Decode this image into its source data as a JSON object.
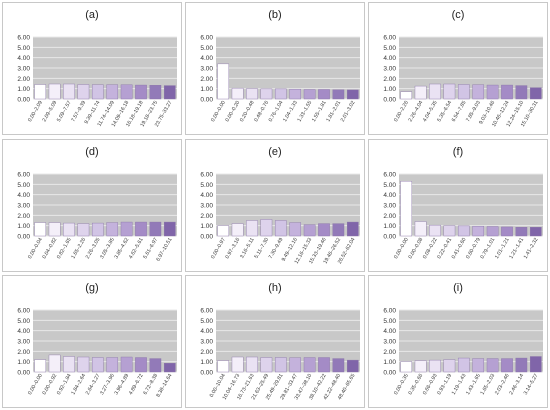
{
  "colors": {
    "plot_bg": "#c8c8c8",
    "grid": "#e9e9e9",
    "axis_text": "#333333",
    "bar_stroke": "#8a74a8",
    "bar_fills": [
      "#ffffff",
      "#f4eff9",
      "#eae2f3",
      "#ded3ec",
      "#d1c4e5",
      "#c4b2dc",
      "#b5a0d2",
      "#a48bc6",
      "#927ab8",
      "#8065a9",
      "#6f4f9c"
    ]
  },
  "chart_data": [
    {
      "label": "(a)",
      "type": "bar",
      "ylim": [
        0,
        6
      ],
      "yticks": [
        "0.00",
        "1.00",
        "2.00",
        "3.00",
        "4.00",
        "5.00",
        "6.00"
      ],
      "grid": true,
      "categories": [
        "0.00–2.09",
        "2.09–5.09",
        "5.09–7.57",
        "7.57–9.39",
        "9.39–11.74",
        "11.74–14.09",
        "14.09–16.18",
        "16.18–19.18",
        "19.18–23.75",
        "23.75–33.27"
      ],
      "values": [
        1.4,
        1.45,
        1.45,
        1.4,
        1.38,
        1.38,
        1.38,
        1.35,
        1.33,
        1.3
      ]
    },
    {
      "label": "(b)",
      "type": "bar",
      "ylim": [
        0,
        6
      ],
      "yticks": [
        "0.00",
        "1.00",
        "2.00",
        "3.00",
        "4.00",
        "5.00",
        "6.00"
      ],
      "grid": true,
      "categories": [
        "0.00–0.00",
        "0.00–0.20",
        "0.20–0.48",
        "0.48–0.76",
        "0.76–1.04",
        "1.04–1.33",
        "1.33–1.55",
        "1.55–1.81",
        "1.81–2.01",
        "2.01–3.02"
      ],
      "values": [
        3.4,
        1.05,
        1.0,
        0.98,
        0.98,
        0.95,
        0.92,
        0.92,
        0.9,
        0.88
      ]
    },
    {
      "label": "(c)",
      "type": "bar",
      "ylim": [
        0,
        6
      ],
      "yticks": [
        "0.00",
        "1.00",
        "2.00",
        "3.00",
        "4.00",
        "5.00",
        "6.00"
      ],
      "grid": true,
      "categories": [
        "0.00–2.26",
        "2.26–4.04",
        "4.04–5.35",
        "5.35–6.54",
        "6.54–7.85",
        "7.85–9.03",
        "9.03–10.46",
        "10.46–12.24",
        "12.24–15.10",
        "15.10–30.31"
      ],
      "values": [
        0.7,
        1.25,
        1.45,
        1.45,
        1.4,
        1.38,
        1.35,
        1.35,
        1.3,
        1.1
      ]
    },
    {
      "label": "(d)",
      "type": "bar",
      "ylim": [
        0,
        6
      ],
      "yticks": [
        "0.00",
        "1.00",
        "2.00",
        "3.00",
        "4.00",
        "5.00",
        "6.00"
      ],
      "grid": true,
      "categories": [
        "0.00–0.04",
        "0.04–0.82",
        "0.82–1.65",
        "1.65–2.26",
        "2.26–3.05",
        "3.05–3.85",
        "3.85–4.62",
        "4.62–5.61",
        "5.61–6.97",
        "6.97–10.51"
      ],
      "values": [
        1.3,
        1.3,
        1.25,
        1.2,
        1.25,
        1.3,
        1.35,
        1.35,
        1.35,
        1.35
      ]
    },
    {
      "label": "(e)",
      "type": "bar",
      "ylim": [
        0,
        6
      ],
      "yticks": [
        "0.00",
        "1.00",
        "2.00",
        "3.00",
        "4.00",
        "5.00",
        "6.00"
      ],
      "grid": true,
      "categories": [
        "0.00–0.97",
        "0.97–3.16",
        "3.16–5.11",
        "5.11–7.30",
        "7.30–9.49",
        "9.49–12.16",
        "12.16–15.33",
        "15.33–19.46",
        "19.46–26.52",
        "26.52–62.04"
      ],
      "values": [
        1.0,
        1.2,
        1.5,
        1.6,
        1.5,
        1.3,
        1.1,
        1.2,
        1.2,
        1.35
      ]
    },
    {
      "label": "(f)",
      "type": "bar",
      "ylim": [
        0,
        6
      ],
      "yticks": [
        "0.00",
        "1.00",
        "2.00",
        "3.00",
        "4.00",
        "5.00",
        "6.00"
      ],
      "grid": true,
      "categories": [
        "0.00–0.00",
        "0.00–0.08",
        "0.08–0.22",
        "0.22–0.41",
        "0.41–0.60",
        "0.60–0.79",
        "0.79–1.01",
        "1.01–1.21",
        "1.21–1.41",
        "1.41–2.32"
      ],
      "values": [
        5.3,
        1.4,
        1.05,
        1.0,
        0.98,
        0.95,
        0.92,
        0.88,
        0.85,
        0.85
      ]
    },
    {
      "label": "(g)",
      "type": "bar",
      "ylim": [
        0,
        6
      ],
      "yticks": [
        "0.00",
        "1.00",
        "2.00",
        "3.00",
        "4.00",
        "5.00",
        "6.00"
      ],
      "grid": true,
      "categories": [
        "0.00–0.00",
        "0.00–0.92",
        "0.92–1.84",
        "1.84–2.64",
        "2.64–3.27",
        "3.27–3.96",
        "3.96–4.89",
        "4.89–6.72",
        "6.72–8.38",
        "8.38–14.64"
      ],
      "values": [
        1.2,
        1.65,
        1.5,
        1.45,
        1.4,
        1.4,
        1.45,
        1.4,
        1.3,
        0.85
      ]
    },
    {
      "label": "(h)",
      "type": "bar",
      "ylim": [
        0,
        6
      ],
      "yticks": [
        "0.00",
        "1.00",
        "2.00",
        "3.00",
        "4.00",
        "5.00",
        "6.00"
      ],
      "grid": true,
      "categories": [
        "0.00–10.04",
        "10.04–16.73",
        "16.73–21.63",
        "21.63–25.49",
        "25.49–29.81",
        "29.81–33.47",
        "33.47–38.10",
        "38.10–42.22",
        "42.22–48.40",
        "48.40–65.65"
      ],
      "values": [
        1.1,
        1.45,
        1.45,
        1.4,
        1.4,
        1.38,
        1.4,
        1.4,
        1.3,
        1.15
      ]
    },
    {
      "label": "(i)",
      "type": "bar",
      "ylim": [
        0,
        6
      ],
      "yticks": [
        "0.00",
        "1.00",
        "2.00",
        "3.00",
        "4.00",
        "5.00",
        "6.00"
      ],
      "grid": true,
      "categories": [
        "0.00–0.35",
        "0.35–0.66",
        "0.66–0.93",
        "0.93–1.19",
        "1.19–1.43",
        "1.43–1.65",
        "1.65–2.03",
        "2.03–2.46",
        "2.46–3.14",
        "3.14–5.27"
      ],
      "values": [
        1.0,
        1.1,
        1.15,
        1.2,
        1.35,
        1.3,
        1.3,
        1.3,
        1.35,
        1.5
      ]
    }
  ]
}
